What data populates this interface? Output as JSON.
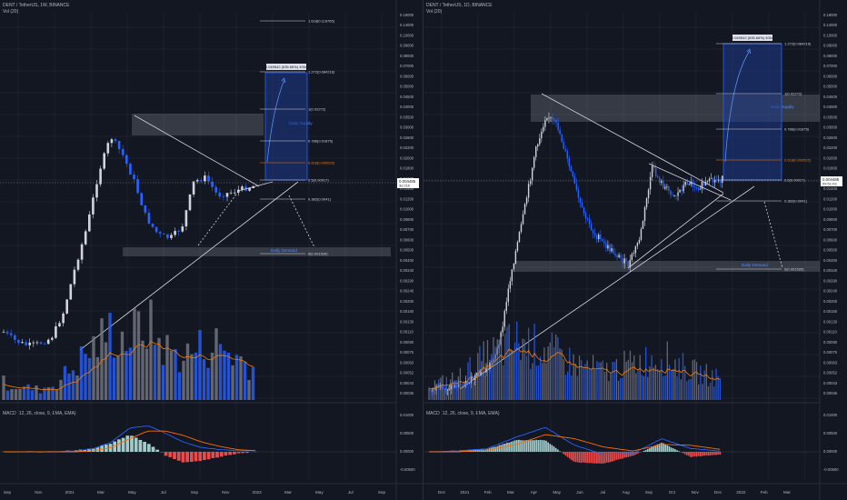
{
  "panels": [
    {
      "id": "left",
      "symbol_line": "DENT / TetherUS, 1W, BINANCE",
      "volume_label": "Vol (20)",
      "macd_label": "MACD (12, 26, close, 9, EMA, EMA)",
      "price_ticks": [
        "0.18000",
        "0.14000",
        "0.10000",
        "0.09000",
        "0.08000",
        "0.07000",
        "0.06000",
        "0.05000",
        "0.04500",
        "0.04000",
        "0.03500",
        "0.03000",
        "0.02600",
        "0.02200",
        "0.02000",
        "0.01800",
        "0.01600",
        "0.01400",
        "0.01200",
        "0.01000",
        "0.00800",
        "0.00700",
        "0.00600",
        "0.00500",
        "0.00400",
        "0.00340",
        "0.00290",
        "0.00240",
        "0.00200",
        "0.00160",
        "0.00130",
        "0.00110",
        "0.00090",
        "0.00075",
        "0.00063",
        "0.00052",
        "0.00043",
        "0.00036"
      ],
      "macd_ticks": [
        "0.01000",
        "0.00500",
        "0.00000",
        "-0.00500"
      ],
      "time_labels": [
        "Sep",
        "Nov",
        "2021",
        "Mar",
        "May",
        "Jul",
        "Sep",
        "Nov",
        "2022",
        "Mar",
        "May",
        "Jul",
        "Sep"
      ],
      "current_price": "0.004485",
      "current_time": "3d 21h",
      "fib_labels": [
        "1.618(0.116765)",
        "1.272(0.084216)",
        "1(0.02272)",
        "0.786(0.01875)",
        "0.618(0.009522)",
        "0.5(0.00917)",
        "0.382(0.0041)",
        "0(0.001526)"
      ],
      "measure_label": "0.049542 (635.66%) 4054",
      "supply_label": "Daily Supply",
      "demand_label": "Daily Demand",
      "chart_data": {
        "type": "candlestick",
        "scale": "log",
        "x": [
          "Aug 2020",
          "Sep 2020",
          "Oct 2020",
          "Nov 2020",
          "Dec 2020",
          "Jan 2021",
          "Feb 2021",
          "Mar 2021",
          "Apr 2021",
          "May 2021",
          "Jun 2021",
          "Jul 2021",
          "Aug 2021",
          "Sep 2021",
          "Oct 2021"
        ],
        "close": [
          0.0011,
          0.0009,
          0.00075,
          0.0008,
          0.0013,
          0.0022,
          0.0055,
          0.011,
          0.0105,
          0.0028,
          0.0019,
          0.0025,
          0.0055,
          0.0037,
          0.0045
        ],
        "volume_relative": [
          0.2,
          0.15,
          0.12,
          0.2,
          0.4,
          0.6,
          0.8,
          0.7,
          0.9,
          0.6,
          0.5,
          0.6,
          0.65,
          0.5,
          0.4
        ],
        "macd": [
          0.0,
          0.0,
          0.0,
          0.0,
          0.0001,
          0.0003,
          0.0009,
          0.0022,
          0.0024,
          0.0017,
          0.0009,
          0.0004,
          0.0002,
          0.0001,
          0.0001
        ],
        "macd_signal": [
          0.0,
          0.0,
          0.0,
          0.0,
          0.0,
          0.0001,
          0.0004,
          0.0012,
          0.0019,
          0.0019,
          0.0015,
          0.0009,
          0.0005,
          0.0002,
          0.0001
        ]
      }
    },
    {
      "id": "right",
      "symbol_line": "DENT / TetherUS, 1D, BINANCE",
      "volume_label": "Vol (20)",
      "macd_label": "MACD (12, 26, close, 9, EMA, EMA)",
      "price_ticks": [
        "0.18000",
        "0.14000",
        "0.10000",
        "0.09000",
        "0.08000",
        "0.07000",
        "0.06000",
        "0.05000",
        "0.04500",
        "0.04000",
        "0.03500",
        "0.03000",
        "0.02600",
        "0.02200",
        "0.02000",
        "0.01800",
        "0.01600",
        "0.01400",
        "0.01200",
        "0.01000",
        "0.00800",
        "0.00700",
        "0.00600",
        "0.00500",
        "0.00400",
        "0.00340",
        "0.00290",
        "0.00240",
        "0.00200",
        "0.00160",
        "0.00130",
        "0.00110",
        "0.00090",
        "0.00075",
        "0.00063",
        "0.00052",
        "0.00043",
        "0.00036"
      ],
      "macd_ticks": [
        "0.01000",
        "0.00500",
        "0.00000",
        "-0.00500"
      ],
      "time_labels": [
        "Dec",
        "2021",
        "Feb",
        "Mar",
        "Apr",
        "May",
        "Jun",
        "Jul",
        "Aug",
        "Sep",
        "Oct",
        "Nov",
        "Dec",
        "2022",
        "Feb",
        "Mar"
      ],
      "current_price": "0.004485",
      "current_time": "09:51:03",
      "fib_labels": [
        "1.272(0.084216)",
        "1(0.02272)",
        "0.786(0.01875)",
        "0.618(0.009522)",
        "0.5(0.00917)",
        "0.382(0.0041)",
        "0(0.001526)"
      ],
      "measure_label": "0.049542 (635.66%) 4054",
      "supply_label": "Daily Supply",
      "demand_label": "Daily Demand",
      "chart_data": {
        "type": "candlestick",
        "scale": "log",
        "x": [
          "Dec 2020",
          "Jan 2021",
          "Feb 2021",
          "Mar 2021",
          "Apr 2021",
          "May 2021",
          "Jun 2021",
          "Jul 2021",
          "Aug 2021",
          "Sep 2021",
          "Oct 2021"
        ],
        "close": [
          0.00045,
          0.0009,
          0.0018,
          0.0085,
          0.015,
          0.0048,
          0.0032,
          0.0019,
          0.0065,
          0.0038,
          0.0045
        ],
        "volume_relative": [
          0.2,
          0.3,
          0.6,
          0.8,
          0.7,
          0.5,
          0.4,
          0.5,
          0.6,
          0.4,
          0.3
        ],
        "macd": [
          0.0,
          0.0001,
          0.0004,
          0.0018,
          0.003,
          0.0008,
          -0.0003,
          -0.0002,
          0.0016,
          0.0004,
          0.0001
        ],
        "macd_signal": [
          0.0,
          0.0,
          0.0002,
          0.0009,
          0.0021,
          0.0016,
          0.0006,
          0.0001,
          0.0009,
          0.0008,
          0.0003
        ]
      }
    }
  ],
  "colors": {
    "background": "#131722",
    "up_candle": "#d1d4dc",
    "down_candle": "#2962ff",
    "volume_up": "#787b86",
    "volume_down": "#2962ff",
    "ema": "#f57c00",
    "macd_line": "#2962ff",
    "signal_line": "#ff6d00",
    "hist_pos": "#b2dfdb",
    "hist_neg": "#ff5252",
    "zone": "#787b86",
    "target_box": "#1e3a8a",
    "current_price_bg": "#ffffff"
  }
}
